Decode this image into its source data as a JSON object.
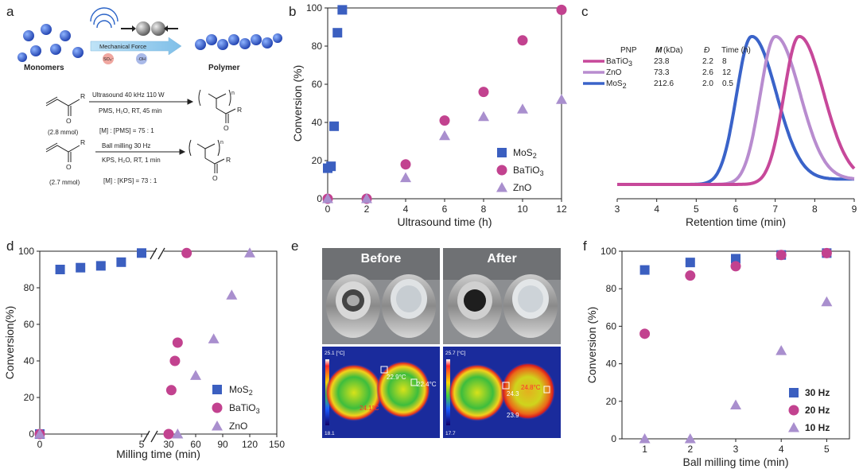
{
  "colors": {
    "mos2": "#3b5fc0",
    "batio3": "#c2428f",
    "zno": "#a98fce",
    "line_batio3": "#c7489a",
    "line_zno": "#b88ccf",
    "line_mos2": "#3a63c9"
  },
  "panels": {
    "a": "a",
    "b": "b",
    "c": "c",
    "d": "d",
    "e": "e",
    "f": "f"
  },
  "scheme": {
    "monomers": "Monomers",
    "polymer": "Polymer",
    "mech_force": "Mechanical Force",
    "so4": "SO₄⁻",
    "oh": "·OH",
    "r1": {
      "condition1": "Ultrasound 40 kHz  110 W",
      "condition2": "PMS, H₂O, RT, 45 min",
      "amount": "(2.8 mmol)",
      "ratio": "[M] : [PMS] = 75 : 1",
      "R": "R",
      "O": "O",
      "n": "n"
    },
    "r2": {
      "condition1": "Ball milling 30 Hz",
      "condition2": "KPS, H₂O, RT, 1 min",
      "amount": "(2.7 mmol)",
      "ratio": "[M] : [KPS] = 73 : 1",
      "R": "R",
      "O": "O",
      "n": "n"
    }
  },
  "photos": {
    "before": "Before",
    "after": "After",
    "thermal_before": {
      "max": "25.1 [°C]",
      "min": "18.1",
      "t1": "22.9°C",
      "t2": "22.4°C",
      "t3": "24.1°C"
    },
    "thermal_after": {
      "max": "25.7 [°C]",
      "min": "17.7",
      "t1": "24.3",
      "t2": "24.8°C",
      "t3": "23.9"
    }
  },
  "chart_data": [
    {
      "panel": "b",
      "type": "scatter",
      "xlabel": "Ultrasound time (h)",
      "ylabel": "Conversion (%)",
      "xlim": [
        0,
        12
      ],
      "ylim": [
        0,
        100
      ],
      "xticks": [
        "0",
        "2",
        "4",
        "6",
        "8",
        "10",
        "12"
      ],
      "yticks": [
        "0",
        "20",
        "40",
        "60",
        "80",
        "100"
      ],
      "legend_position": "bottom-right",
      "series": [
        {
          "name": "MoS",
          "marker": "square",
          "x": [
            0,
            0.17,
            0.33,
            0.5,
            0.75
          ],
          "y": [
            16,
            17,
            38,
            87,
            99
          ]
        },
        {
          "name": "BaTiO",
          "marker": "circle",
          "x": [
            0,
            2,
            4,
            6,
            8,
            10,
            12
          ],
          "y": [
            0,
            0,
            18,
            41,
            56,
            83,
            99
          ]
        },
        {
          "name": "ZnO",
          "marker": "triangle",
          "x": [
            0,
            2,
            4,
            6,
            8,
            10,
            12
          ],
          "y": [
            0,
            0,
            11,
            33,
            43,
            47,
            52
          ]
        }
      ]
    },
    {
      "panel": "c",
      "type": "line",
      "xlabel": "Retention time (min)",
      "xlim": [
        3,
        9
      ],
      "xticks": [
        "3",
        "4",
        "5",
        "6",
        "7",
        "8",
        "9"
      ],
      "table": {
        "headers": [
          "PNP",
          "M",
          "(kDa)",
          "Đ",
          "Time (h)"
        ],
        "rows": [
          [
            "BaTiO",
            "23.8",
            "2.2",
            "8"
          ],
          [
            "ZnO",
            "73.3",
            "2.6",
            "12"
          ],
          [
            "MoS",
            "212.6",
            "2.0",
            "0.5"
          ]
        ]
      },
      "series": [
        {
          "name": "BaTiO",
          "peak_x": 7.6
        },
        {
          "name": "ZnO",
          "peak_x": 7.0
        },
        {
          "name": "MoS",
          "peak_x": 6.4
        }
      ]
    },
    {
      "panel": "d",
      "type": "scatter",
      "xlabel": "Milling time (min)",
      "ylabel": "Conversion(%)",
      "ylim": [
        0,
        100
      ],
      "axis_break": "between 5 and 30",
      "xticks": [
        "0",
        "5",
        "30",
        "60",
        "90",
        "120",
        "150"
      ],
      "yticks": [
        "0",
        "20",
        "40",
        "60",
        "80",
        "100"
      ],
      "legend_position": "bottom-right",
      "series": [
        {
          "name": "MoS",
          "marker": "square",
          "x": [
            0,
            1,
            2,
            3,
            4,
            5
          ],
          "y": [
            0,
            90,
            91,
            92,
            94,
            99
          ]
        },
        {
          "name": "BaTiO",
          "marker": "circle",
          "x": [
            0,
            30,
            33,
            37,
            40,
            50
          ],
          "y": [
            0,
            0,
            24,
            40,
            50,
            99
          ]
        },
        {
          "name": "ZnO",
          "marker": "triangle",
          "x": [
            0,
            40,
            60,
            80,
            100,
            120
          ],
          "y": [
            0,
            0,
            32,
            52,
            76,
            99
          ]
        }
      ]
    },
    {
      "panel": "f",
      "type": "scatter",
      "xlabel": "Ball milling time (min)",
      "ylabel": "Conversion (%)",
      "xlim": [
        0.5,
        5.5
      ],
      "ylim": [
        0,
        100
      ],
      "xticks": [
        "1",
        "2",
        "3",
        "4",
        "5"
      ],
      "yticks": [
        "0",
        "20",
        "40",
        "60",
        "80",
        "100"
      ],
      "legend_position": "bottom-right",
      "series": [
        {
          "name": "30 Hz",
          "marker": "square",
          "x": [
            1,
            2,
            3,
            4,
            5
          ],
          "y": [
            90,
            94,
            96,
            98,
            99
          ]
        },
        {
          "name": "20 Hz",
          "marker": "circle",
          "x": [
            1,
            2,
            3,
            4,
            5
          ],
          "y": [
            56,
            87,
            92,
            98,
            99
          ]
        },
        {
          "name": "10 Hz",
          "marker": "triangle",
          "x": [
            1,
            2,
            3,
            4,
            5
          ],
          "y": [
            0,
            0,
            18,
            47,
            73
          ]
        }
      ]
    }
  ]
}
